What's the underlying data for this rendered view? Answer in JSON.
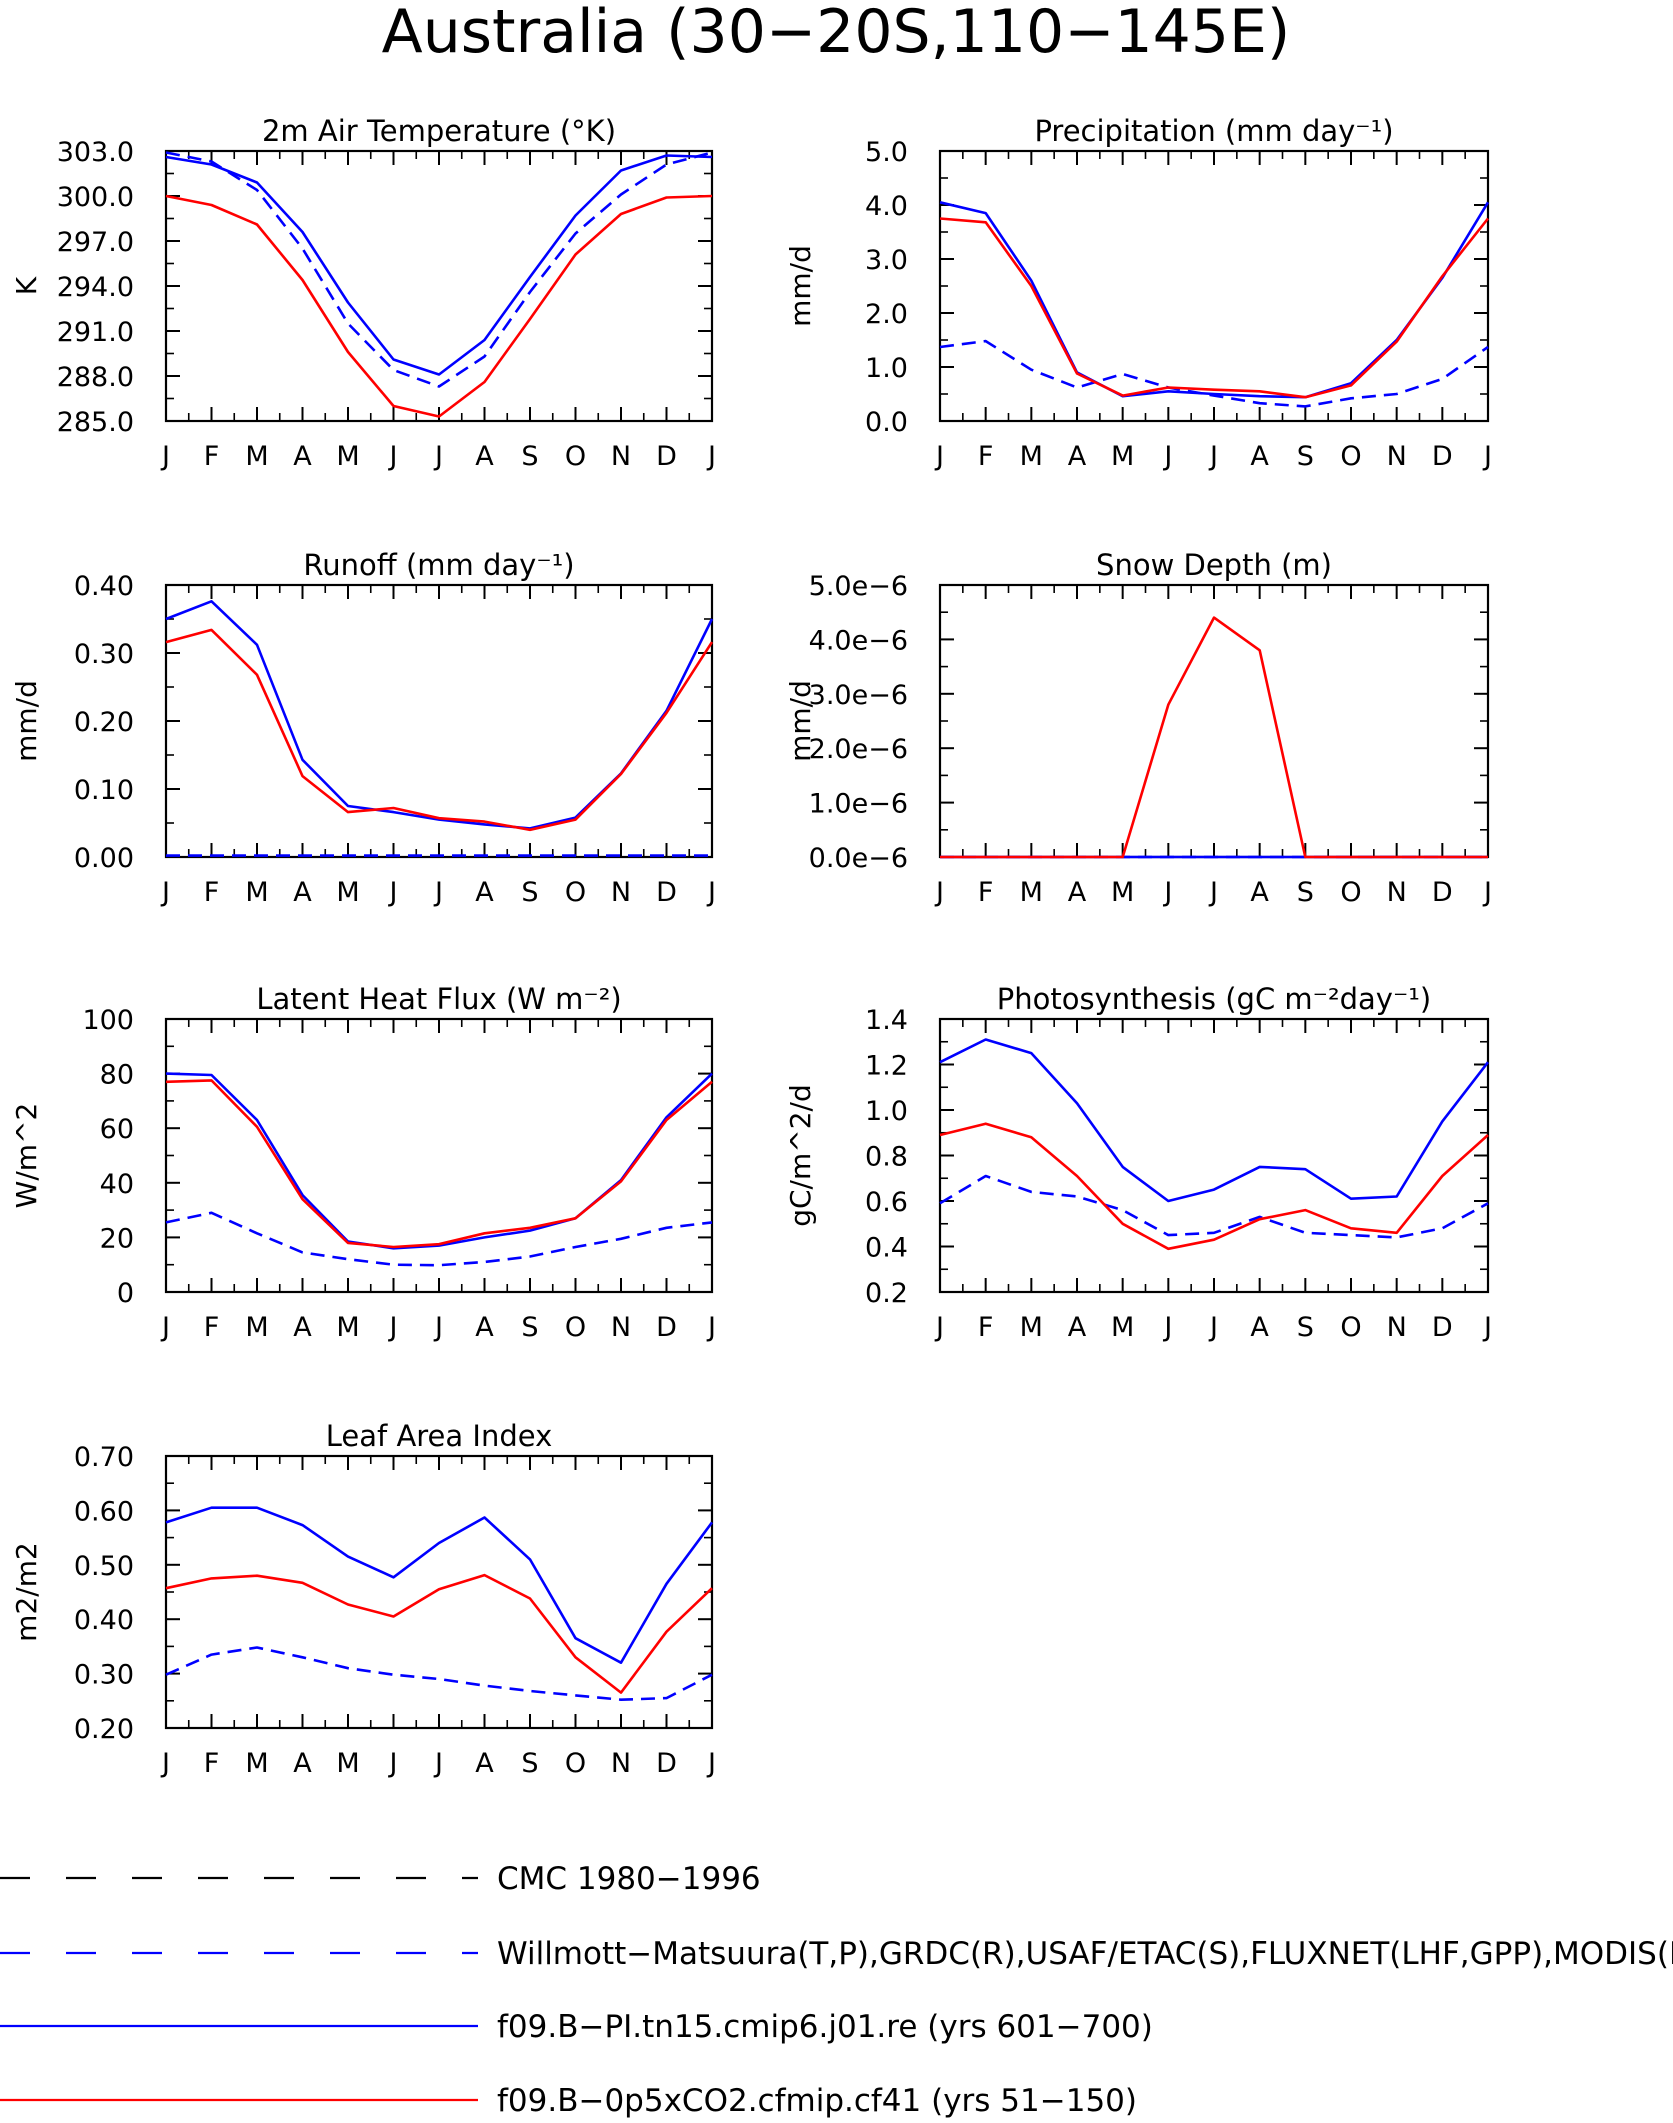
{
  "figure_title": "Australia (30−20S,110−145E)",
  "colors": {
    "obs": "#0000ff",
    "model_blue": "#0000ff",
    "model_red": "#ff0000",
    "cmc": "#000000"
  },
  "legend": [
    {
      "label": "CMC 1980−1996",
      "color": "#000000",
      "dash": "dashed"
    },
    {
      "label": "Willmott−Matsuura(T,P),GRDC(R),USAF/ETAC(S),FLUXNET(LHF,GPP),MODIS(L",
      "color": "#0000ff",
      "dash": "dashed"
    },
    {
      "label": "f09.B−PI.tn15.cmip6.j01.re (yrs 601−700)",
      "color": "#0000ff",
      "dash": "solid"
    },
    {
      "label": "f09.B−0p5xCO2.cfmip.cf41 (yrs 51−150)",
      "color": "#ff0000",
      "dash": "solid"
    }
  ],
  "chart_data": [
    {
      "type": "line",
      "title": "2m Air Temperature (°K)",
      "ylabel": "K",
      "categories": [
        "J",
        "F",
        "M",
        "A",
        "M",
        "J",
        "J",
        "A",
        "S",
        "O",
        "N",
        "D",
        "J"
      ],
      "ylim": [
        285,
        303
      ],
      "ytick_labels": [
        "285.0",
        "288.0",
        "291.0",
        "294.0",
        "297.0",
        "300.0",
        "303.0"
      ],
      "series": [
        {
          "values": [
            302.9,
            302.3,
            300.4,
            296.5,
            291.5,
            288.4,
            287.3,
            289.3,
            293.6,
            297.5,
            300.1,
            302.1,
            302.9
          ],
          "color": "#0000ff",
          "dash": "dashed"
        },
        {
          "values": [
            302.6,
            302.1,
            300.9,
            297.6,
            292.9,
            289.1,
            288.1,
            290.4,
            294.6,
            298.7,
            301.7,
            302.7,
            302.6
          ],
          "color": "#0000ff",
          "dash": "solid"
        },
        {
          "values": [
            300.0,
            299.4,
            298.1,
            294.4,
            289.6,
            286.0,
            285.3,
            287.6,
            291.8,
            296.1,
            298.8,
            299.9,
            300.0
          ],
          "color": "#ff0000",
          "dash": "solid"
        }
      ]
    },
    {
      "type": "line",
      "title": "Precipitation (mm day⁻¹)",
      "ylabel": "mm/d",
      "categories": [
        "J",
        "F",
        "M",
        "A",
        "M",
        "J",
        "J",
        "A",
        "S",
        "O",
        "N",
        "D",
        "J"
      ],
      "ylim": [
        0,
        5
      ],
      "ytick_labels": [
        "0.0",
        "1.0",
        "2.0",
        "3.0",
        "4.0",
        "5.0"
      ],
      "series": [
        {
          "values": [
            1.37,
            1.48,
            0.95,
            0.62,
            0.87,
            0.62,
            0.47,
            0.33,
            0.27,
            0.42,
            0.5,
            0.78,
            1.37
          ],
          "color": "#0000ff",
          "dash": "dashed"
        },
        {
          "values": [
            4.05,
            3.85,
            2.6,
            0.9,
            0.46,
            0.55,
            0.5,
            0.46,
            0.44,
            0.7,
            1.5,
            2.65,
            4.05
          ],
          "color": "#0000ff",
          "dash": "solid"
        },
        {
          "values": [
            3.75,
            3.68,
            2.5,
            0.88,
            0.47,
            0.62,
            0.58,
            0.55,
            0.44,
            0.66,
            1.47,
            2.68,
            3.75
          ],
          "color": "#ff0000",
          "dash": "solid"
        }
      ]
    },
    {
      "type": "line",
      "title": "Runoff (mm day⁻¹)",
      "ylabel": "mm/d",
      "categories": [
        "J",
        "F",
        "M",
        "A",
        "M",
        "J",
        "J",
        "A",
        "S",
        "O",
        "N",
        "D",
        "J"
      ],
      "ylim": [
        0,
        0.4
      ],
      "ytick_labels": [
        "0.00",
        "0.10",
        "0.20",
        "0.30",
        "0.40"
      ],
      "series": [
        {
          "values": [
            0.002,
            0.002,
            0.002,
            0.002,
            0.002,
            0.002,
            0.002,
            0.002,
            0.002,
            0.002,
            0.002,
            0.002,
            0.002
          ],
          "color": "#0000ff",
          "dash": "dashed"
        },
        {
          "values": [
            0.35,
            0.376,
            0.312,
            0.143,
            0.075,
            0.066,
            0.055,
            0.048,
            0.042,
            0.058,
            0.123,
            0.215,
            0.35
          ],
          "color": "#0000ff",
          "dash": "solid"
        },
        {
          "values": [
            0.316,
            0.334,
            0.268,
            0.119,
            0.066,
            0.072,
            0.057,
            0.052,
            0.04,
            0.055,
            0.122,
            0.212,
            0.316
          ],
          "color": "#ff0000",
          "dash": "solid"
        }
      ]
    },
    {
      "type": "line",
      "title": "Snow Depth (m)",
      "ylabel": "mm/d",
      "categories": [
        "J",
        "F",
        "M",
        "A",
        "M",
        "J",
        "J",
        "A",
        "S",
        "O",
        "N",
        "D",
        "J"
      ],
      "ylim": [
        0,
        5e-06
      ],
      "ytick_labels": [
        "0.0e−6",
        "1.0e−6",
        "2.0e−6",
        "3.0e−6",
        "4.0e−6",
        "5.0e−6"
      ],
      "series": [
        {
          "values": [
            0,
            0,
            0,
            0,
            0,
            0,
            0,
            0,
            0,
            0,
            0,
            0,
            0
          ],
          "color": "#0000ff",
          "dash": "dashed"
        },
        {
          "values": [
            0,
            0,
            0,
            0,
            0,
            0,
            0,
            0,
            0,
            0,
            0,
            0,
            0
          ],
          "color": "#0000ff",
          "dash": "solid"
        },
        {
          "values": [
            0,
            0,
            0,
            0,
            0,
            2.8e-06,
            4.4e-06,
            3.8e-06,
            0,
            0,
            0,
            0,
            0
          ],
          "color": "#ff0000",
          "dash": "solid"
        }
      ]
    },
    {
      "type": "line",
      "title": "Latent Heat Flux (W m⁻²)",
      "ylabel": "W/m^2",
      "categories": [
        "J",
        "F",
        "M",
        "A",
        "M",
        "J",
        "J",
        "A",
        "S",
        "O",
        "N",
        "D",
        "J"
      ],
      "ylim": [
        0,
        100
      ],
      "ytick_labels": [
        "0",
        "20",
        "40",
        "60",
        "80",
        "100"
      ],
      "series": [
        {
          "values": [
            25.5,
            29.0,
            21.5,
            14.5,
            12.0,
            10.0,
            9.8,
            11.0,
            13.0,
            16.5,
            19.5,
            23.5,
            25.5
          ],
          "color": "#0000ff",
          "dash": "dashed"
        },
        {
          "values": [
            80.0,
            79.5,
            63.0,
            35.5,
            18.5,
            16.0,
            17.0,
            20.0,
            22.5,
            27.0,
            41.0,
            64.0,
            80.0
          ],
          "color": "#0000ff",
          "dash": "solid"
        },
        {
          "values": [
            77.0,
            77.5,
            60.5,
            34.0,
            18.0,
            16.5,
            17.5,
            21.5,
            23.5,
            27.0,
            40.5,
            63.0,
            77.0
          ],
          "color": "#ff0000",
          "dash": "solid"
        }
      ]
    },
    {
      "type": "line",
      "title": "Photosynthesis (gC m⁻²day⁻¹)",
      "ylabel": "gC/m^2/d",
      "categories": [
        "J",
        "F",
        "M",
        "A",
        "M",
        "J",
        "J",
        "A",
        "S",
        "O",
        "N",
        "D",
        "J"
      ],
      "ylim": [
        0.2,
        1.4
      ],
      "ytick_labels": [
        "0.2",
        "0.4",
        "0.6",
        "0.8",
        "1.0",
        "1.2",
        "1.4"
      ],
      "series": [
        {
          "values": [
            0.59,
            0.71,
            0.64,
            0.62,
            0.56,
            0.45,
            0.46,
            0.53,
            0.46,
            0.45,
            0.44,
            0.48,
            0.59
          ],
          "color": "#0000ff",
          "dash": "dashed"
        },
        {
          "values": [
            1.21,
            1.31,
            1.25,
            1.03,
            0.75,
            0.6,
            0.65,
            0.75,
            0.74,
            0.61,
            0.62,
            0.95,
            1.21
          ],
          "color": "#0000ff",
          "dash": "solid"
        },
        {
          "values": [
            0.89,
            0.94,
            0.88,
            0.71,
            0.5,
            0.39,
            0.43,
            0.52,
            0.56,
            0.48,
            0.46,
            0.71,
            0.89
          ],
          "color": "#ff0000",
          "dash": "solid"
        }
      ]
    },
    {
      "type": "line",
      "title": "Leaf Area Index",
      "ylabel": "m2/m2",
      "categories": [
        "J",
        "F",
        "M",
        "A",
        "M",
        "J",
        "J",
        "A",
        "S",
        "O",
        "N",
        "D",
        "J"
      ],
      "ylim": [
        0.2,
        0.7
      ],
      "ytick_labels": [
        "0.20",
        "0.30",
        "0.40",
        "0.50",
        "0.60",
        "0.70"
      ],
      "series": [
        {
          "values": [
            0.298,
            0.335,
            0.348,
            0.33,
            0.31,
            0.298,
            0.29,
            0.278,
            0.268,
            0.26,
            0.252,
            0.255,
            0.298
          ],
          "color": "#0000ff",
          "dash": "dashed"
        },
        {
          "values": [
            0.578,
            0.605,
            0.605,
            0.573,
            0.515,
            0.477,
            0.54,
            0.587,
            0.51,
            0.365,
            0.32,
            0.465,
            0.578
          ],
          "color": "#0000ff",
          "dash": "solid"
        },
        {
          "values": [
            0.457,
            0.475,
            0.48,
            0.467,
            0.427,
            0.405,
            0.455,
            0.481,
            0.438,
            0.33,
            0.265,
            0.377,
            0.457
          ],
          "color": "#ff0000",
          "dash": "solid"
        }
      ]
    }
  ]
}
